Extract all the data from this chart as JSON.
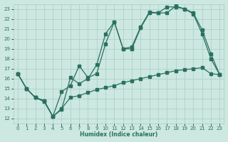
{
  "xlabel": "Humidex (Indice chaleur)",
  "background_color": "#cce8e0",
  "grid_color": "#aaccc4",
  "line_color": "#2a7060",
  "xlim": [
    -0.5,
    23.5
  ],
  "ylim": [
    11.5,
    23.5
  ],
  "xticks": [
    0,
    1,
    2,
    3,
    4,
    5,
    6,
    7,
    8,
    9,
    10,
    11,
    12,
    13,
    14,
    15,
    16,
    17,
    18,
    19,
    20,
    21,
    22,
    23
  ],
  "yticks": [
    12,
    13,
    14,
    15,
    16,
    17,
    18,
    19,
    20,
    21,
    22,
    23
  ],
  "line1_x": [
    0,
    1,
    2,
    3,
    4,
    5,
    6,
    7,
    8,
    9,
    10,
    11,
    12,
    13,
    14,
    15,
    16,
    17,
    18,
    19,
    20,
    21,
    22,
    23
  ],
  "line1_y": [
    16.5,
    15.0,
    14.1,
    13.8,
    12.2,
    12.9,
    16.1,
    15.5,
    16.0,
    17.4,
    20.5,
    21.7,
    19.0,
    19.0,
    21.1,
    22.6,
    22.6,
    22.6,
    23.3,
    23.0,
    22.5,
    20.5,
    18.0,
    16.4
  ],
  "line2_x": [
    0,
    1,
    2,
    3,
    4,
    5,
    6,
    7,
    8,
    9,
    10,
    11,
    12,
    13,
    14,
    15,
    16,
    17,
    18,
    19,
    20,
    21,
    22,
    23
  ],
  "line2_y": [
    16.5,
    15.0,
    14.1,
    13.7,
    12.2,
    14.7,
    15.3,
    17.3,
    16.1,
    16.5,
    19.5,
    21.7,
    19.0,
    19.2,
    21.2,
    22.7,
    22.6,
    23.2,
    23.2,
    23.0,
    22.6,
    20.9,
    18.5,
    16.4
  ],
  "line3_x": [
    0,
    1,
    2,
    3,
    4,
    5,
    6,
    7,
    8,
    9,
    10,
    11,
    12,
    13,
    14,
    15,
    16,
    17,
    18,
    19,
    20,
    21,
    22,
    23
  ],
  "line3_y": [
    16.5,
    15.0,
    14.1,
    13.8,
    12.2,
    13.0,
    14.1,
    14.3,
    14.6,
    14.9,
    15.1,
    15.3,
    15.6,
    15.8,
    16.0,
    16.2,
    16.4,
    16.6,
    16.8,
    16.9,
    17.0,
    17.1,
    16.5,
    16.4
  ]
}
